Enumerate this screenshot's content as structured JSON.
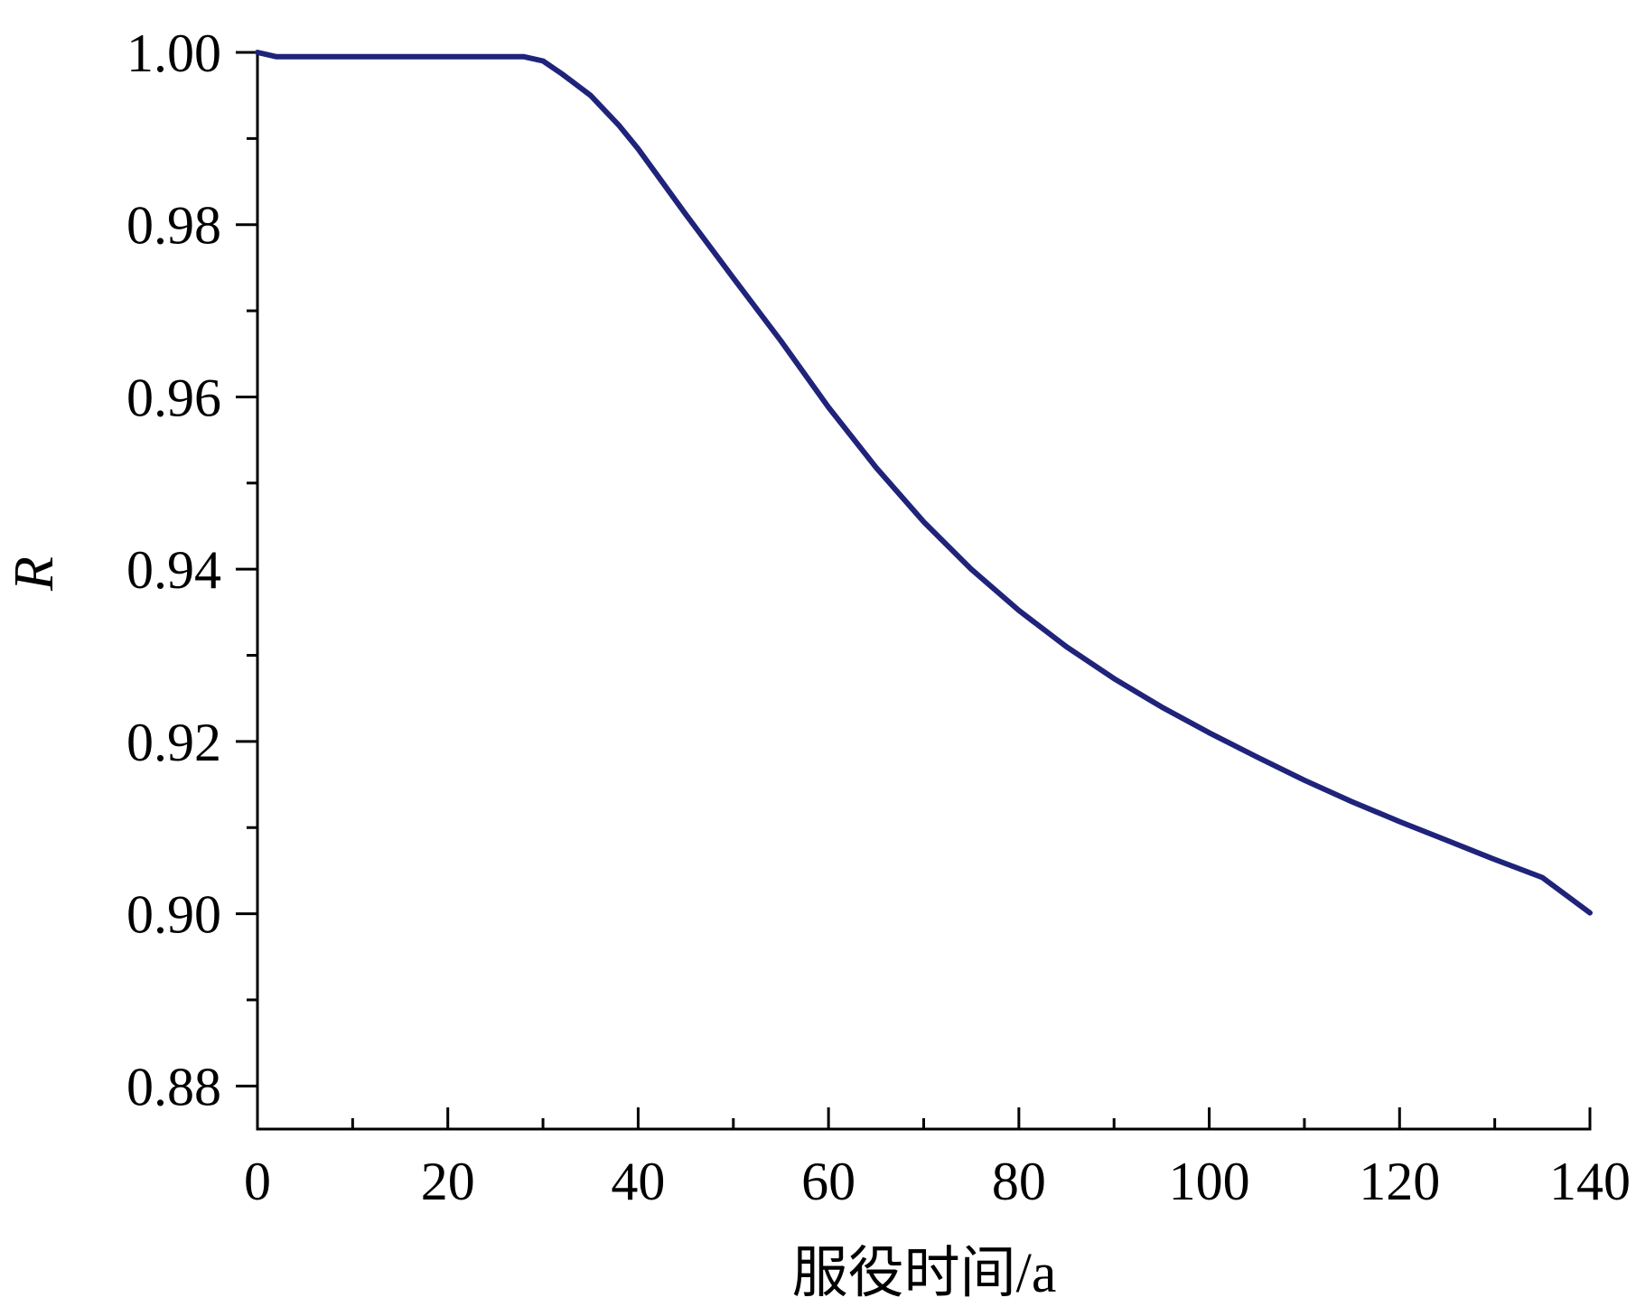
{
  "chart_data": {
    "type": "line",
    "title": "",
    "xlabel": "服役时间/a",
    "ylabel": "R",
    "xlim": [
      0,
      140
    ],
    "ylim": [
      0.875,
      1.0
    ],
    "xticks": [
      0,
      20,
      40,
      60,
      80,
      100,
      120,
      140
    ],
    "xtick_labels": [
      "0",
      "20",
      "40",
      "60",
      "80",
      "100",
      "120",
      "140"
    ],
    "yticks": [
      0.88,
      0.9,
      0.92,
      0.94,
      0.96,
      0.98,
      1.0
    ],
    "ytick_labels": [
      "0.88",
      "0.90",
      "0.92",
      "0.94",
      "0.96",
      "0.98",
      "1.00"
    ],
    "grid": false,
    "legend": "none",
    "colors": {
      "line": "#1f237a",
      "axis": "#000000"
    },
    "series": [
      {
        "x": [
          0,
          2,
          5,
          10,
          15,
          20,
          25,
          28,
          30,
          32,
          35,
          38,
          40,
          45,
          50,
          55,
          60,
          65,
          70,
          75,
          80,
          85,
          90,
          95,
          100,
          105,
          110,
          115,
          120,
          125,
          130,
          135,
          140
        ],
        "values": [
          1.0,
          0.9995,
          0.9995,
          0.9995,
          0.9995,
          0.9995,
          0.9995,
          0.9995,
          0.999,
          0.9975,
          0.995,
          0.9915,
          0.9888,
          0.9812,
          0.9738,
          0.9665,
          0.9588,
          0.9518,
          0.9455,
          0.94,
          0.9352,
          0.931,
          0.9273,
          0.924,
          0.921,
          0.9182,
          0.9155,
          0.913,
          0.9107,
          0.9085,
          0.9063,
          0.9042,
          0.9001
        ]
      }
    ]
  }
}
